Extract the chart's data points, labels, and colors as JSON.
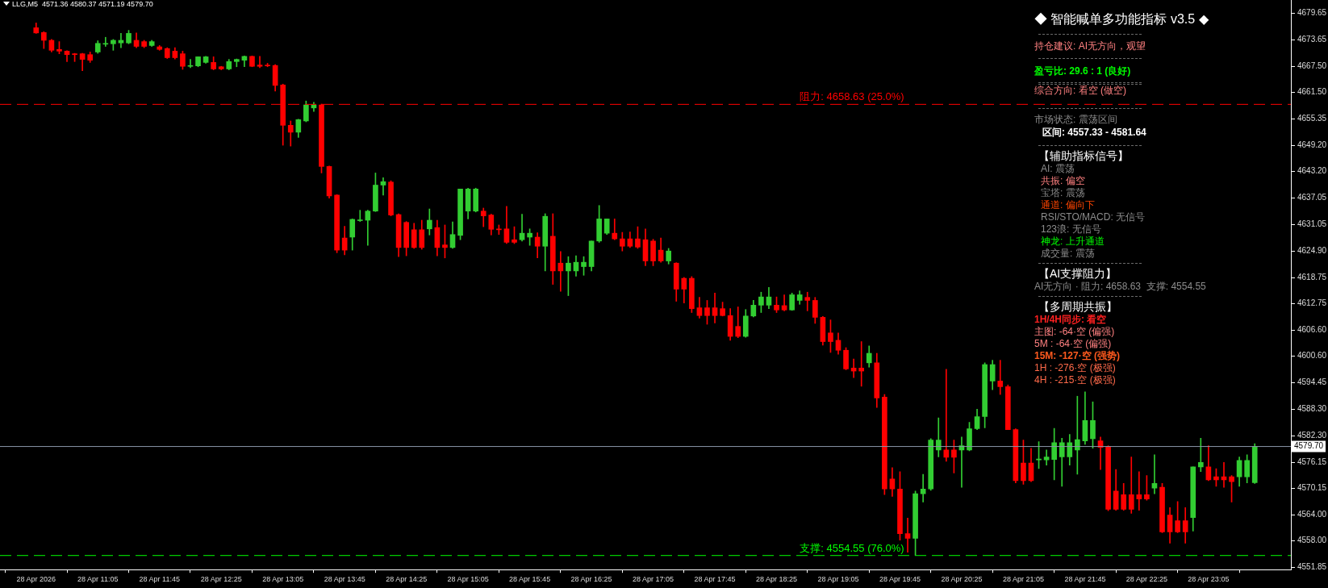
{
  "chart_data": {
    "type": "candlestick",
    "title": "LLG,M5  4571.36 4580.37 4571.19 4579.70",
    "categories": [
      "28 Apr 2026",
      null,
      null,
      null,
      null,
      null,
      null,
      null,
      "28 Apr 11:05",
      null,
      null,
      null,
      null,
      null,
      null,
      null,
      "28 Apr 11:45",
      null,
      null,
      null,
      null,
      null,
      null,
      null,
      "28 Apr 12:25",
      null,
      null,
      null,
      null,
      null,
      null,
      null,
      "28 Apr 13:05",
      null,
      null,
      null,
      null,
      null,
      null,
      null,
      "28 Apr 13:45",
      null,
      null,
      null,
      null,
      null,
      null,
      null,
      "28 Apr 14:25",
      null,
      null,
      null,
      null,
      null,
      null,
      null,
      "28 Apr 15:05",
      null,
      null,
      null,
      null,
      null,
      null,
      null,
      "28 Apr 15:45",
      null,
      null,
      null,
      null,
      null,
      null,
      null,
      "28 Apr 16:25",
      null,
      null,
      null,
      null,
      null,
      null,
      null,
      "28 Apr 17:05",
      null,
      null,
      null,
      null,
      null,
      null,
      null,
      "28 Apr 17:45",
      null,
      null,
      null,
      null,
      null,
      null,
      null,
      "28 Apr 18:25",
      null,
      null,
      null,
      null,
      null,
      null,
      null,
      "28 Apr 19:05",
      null,
      null,
      null,
      null,
      null,
      null,
      null,
      "28 Apr 19:45",
      null,
      null,
      null,
      null,
      null,
      null,
      null,
      "28 Apr 20:25",
      null,
      null,
      null,
      null,
      null,
      null,
      null,
      "28 Apr 21:05",
      null,
      null,
      null,
      null,
      null,
      null,
      null,
      "28 Apr 21:45",
      null,
      null,
      null,
      null,
      null,
      null,
      null,
      "28 Apr 22:25",
      null,
      null,
      null,
      null,
      null,
      null,
      null,
      "28 Apr 23:05",
      null,
      null,
      null,
      null,
      null,
      null
    ],
    "ohlc": [
      [
        4676.3,
        4677.4,
        4675.0,
        4675.1
      ],
      [
        4675.2,
        4675.4,
        4671.5,
        4673.4
      ],
      [
        4673.4,
        4673.6,
        4670.7,
        4671.1
      ],
      [
        4671.3,
        4673.1,
        4670.3,
        4670.9
      ],
      [
        4670.9,
        4671.0,
        4668.5,
        4670.1
      ],
      [
        4670.3,
        4670.4,
        4668.5,
        4670.1
      ],
      [
        4670.3,
        4670.4,
        4666.4,
        4669.0
      ],
      [
        4670.1,
        4670.7,
        4668.3,
        4668.8
      ],
      [
        4670.7,
        4673.3,
        4670.4,
        4672.7
      ],
      [
        4672.5,
        4674.1,
        4672.0,
        4672.6
      ],
      [
        4672.6,
        4673.6,
        4671.1,
        4673.4
      ],
      [
        4672.8,
        4675.0,
        4671.7,
        4673.4
      ],
      [
        4672.8,
        4675.7,
        4672.6,
        4675.0
      ],
      [
        4673.4,
        4675.1,
        4671.7,
        4672.0
      ],
      [
        4673.1,
        4673.4,
        4671.7,
        4672.0
      ],
      [
        4672.2,
        4673.4,
        4672.0,
        4673.1
      ],
      [
        4671.9,
        4672.2,
        4671.1,
        4671.3
      ],
      [
        4671.5,
        4671.7,
        4669.2,
        4669.4
      ],
      [
        4670.9,
        4671.7,
        4669.1,
        4669.4
      ],
      [
        4670.3,
        4670.9,
        4666.7,
        4667.4
      ],
      [
        4667.4,
        4669.0,
        4667.1,
        4667.5
      ],
      [
        4667.5,
        4669.6,
        4667.3,
        4669.6
      ],
      [
        4668.3,
        4669.7,
        4668.1,
        4669.6
      ],
      [
        4668.3,
        4669.6,
        4666.6,
        4666.8
      ],
      [
        4667.3,
        4667.4,
        4666.6,
        4666.8
      ],
      [
        4666.8,
        4669.0,
        4666.6,
        4668.5
      ],
      [
        4668.5,
        4669.1,
        4667.3,
        4669.0
      ],
      [
        4668.8,
        4669.8,
        4667.3,
        4669.7
      ],
      [
        4669.7,
        4669.8,
        4667.3,
        4667.4
      ],
      [
        4667.7,
        4669.7,
        4667.1,
        4667.4
      ],
      [
        4667.6,
        4668.1,
        4667.3,
        4667.5
      ],
      [
        4667.6,
        4667.8,
        4661.7,
        4663.0
      ],
      [
        4663.1,
        4663.3,
        4649.2,
        4653.8
      ],
      [
        4653.8,
        4654.8,
        4649.0,
        4652.2
      ],
      [
        4652.2,
        4655.2,
        4651.0,
        4655.1
      ],
      [
        4654.8,
        4659.4,
        4654.6,
        4658.5
      ],
      [
        4657.8,
        4659.1,
        4657.0,
        4658.5
      ],
      [
        4658.5,
        4658.7,
        4642.8,
        4644.3
      ],
      [
        4644.3,
        4644.4,
        4637.0,
        4637.5
      ],
      [
        4637.7,
        4637.8,
        4624.4,
        4625.0
      ],
      [
        4627.8,
        4630.5,
        4623.9,
        4625.0
      ],
      [
        4628.0,
        4632.2,
        4625.0,
        4632.1
      ],
      [
        4631.8,
        4634.2,
        4631.6,
        4631.9
      ],
      [
        4631.9,
        4634.2,
        4626.1,
        4634.0
      ],
      [
        4634.0,
        4642.8,
        4633.9,
        4640.0
      ],
      [
        4640.0,
        4641.7,
        4637.7,
        4640.8
      ],
      [
        4640.7,
        4641.0,
        4632.9,
        4633.1
      ],
      [
        4633.2,
        4633.4,
        4623.5,
        4625.6
      ],
      [
        4631.4,
        4631.6,
        4623.7,
        4625.6
      ],
      [
        4629.7,
        4631.2,
        4625.4,
        4625.6
      ],
      [
        4629.7,
        4631.9,
        4625.2,
        4625.6
      ],
      [
        4629.9,
        4634.5,
        4628.5,
        4631.9
      ],
      [
        4630.2,
        4631.9,
        4623.7,
        4625.6
      ],
      [
        4626.2,
        4630.8,
        4623.2,
        4625.6
      ],
      [
        4625.6,
        4631.5,
        4625.4,
        4628.6
      ],
      [
        4628.4,
        4639.1,
        4627.4,
        4639.1
      ],
      [
        4634.0,
        4639.3,
        4632.2,
        4639.1
      ],
      [
        4634.0,
        4639.3,
        4633.8,
        4639.1
      ],
      [
        4634.0,
        4634.7,
        4630.4,
        4632.9
      ],
      [
        4633.1,
        4633.3,
        4628.5,
        4629.8
      ],
      [
        4629.8,
        4630.8,
        4628.6,
        4629.7
      ],
      [
        4629.9,
        4635.1,
        4626.5,
        4626.8
      ],
      [
        4627.4,
        4630.4,
        4626.5,
        4626.8
      ],
      [
        4627.4,
        4633.3,
        4627.1,
        4628.9
      ],
      [
        4628.0,
        4629.9,
        4626.1,
        4628.9
      ],
      [
        4628.0,
        4629.0,
        4623.2,
        4625.9
      ],
      [
        4625.9,
        4633.4,
        4620.2,
        4632.8
      ],
      [
        4628.2,
        4633.4,
        4617.1,
        4620.2
      ],
      [
        4622.0,
        4624.7,
        4615.5,
        4620.2
      ],
      [
        4620.2,
        4623.5,
        4614.5,
        4622.0
      ],
      [
        4620.2,
        4623.7,
        4619.0,
        4622.2
      ],
      [
        4621.2,
        4623.5,
        4619.2,
        4622.2
      ],
      [
        4621.2,
        4627.1,
        4620.2,
        4627.1
      ],
      [
        4627.1,
        4635.3,
        4626.8,
        4632.2
      ],
      [
        4628.9,
        4632.2,
        4628.6,
        4632.2
      ],
      [
        4628.9,
        4632.2,
        4627.4,
        4627.6
      ],
      [
        4627.6,
        4629.1,
        4624.8,
        4625.9
      ],
      [
        4627.6,
        4629.2,
        4625.6,
        4625.9
      ],
      [
        4627.6,
        4630.4,
        4625.4,
        4625.7
      ],
      [
        4627.4,
        4629.9,
        4621.4,
        4622.5
      ],
      [
        4627.1,
        4627.5,
        4621.4,
        4622.5
      ],
      [
        4625.0,
        4627.8,
        4622.2,
        4622.5
      ],
      [
        4622.5,
        4625.4,
        4621.8,
        4624.8
      ],
      [
        4622.0,
        4622.1,
        4613.2,
        4616.0
      ],
      [
        4618.5,
        4618.7,
        4612.8,
        4616.0
      ],
      [
        4618.5,
        4618.9,
        4610.6,
        4611.5
      ],
      [
        4611.7,
        4614.1,
        4609.3,
        4609.9
      ],
      [
        4611.7,
        4613.4,
        4607.9,
        4609.9
      ],
      [
        4611.7,
        4615.1,
        4608.2,
        4609.9
      ],
      [
        4611.5,
        4613.0,
        4609.8,
        4609.9
      ],
      [
        4609.9,
        4611.5,
        4604.2,
        4605.1
      ],
      [
        4607.4,
        4611.9,
        4604.8,
        4605.1
      ],
      [
        4605.1,
        4611.3,
        4604.9,
        4609.8
      ],
      [
        4609.8,
        4613.4,
        4609.6,
        4612.3
      ],
      [
        4612.3,
        4615.3,
        4610.6,
        4614.2
      ],
      [
        4612.3,
        4616.4,
        4611.5,
        4614.2
      ],
      [
        4612.3,
        4614.2,
        4610.6,
        4611.2
      ],
      [
        4612.2,
        4614.7,
        4611.0,
        4611.2
      ],
      [
        4611.2,
        4615.1,
        4611.1,
        4614.7
      ],
      [
        4613.4,
        4615.6,
        4612.5,
        4614.7
      ],
      [
        4614.1,
        4615.3,
        4611.0,
        4613.4
      ],
      [
        4613.4,
        4614.1,
        4608.1,
        4609.5
      ],
      [
        4609.5,
        4609.7,
        4603.1,
        4603.9
      ],
      [
        4605.9,
        4608.9,
        4601.4,
        4603.9
      ],
      [
        4604.2,
        4605.9,
        4601.0,
        4601.9
      ],
      [
        4601.9,
        4602.5,
        4597.4,
        4597.6
      ],
      [
        4597.8,
        4599.9,
        4595.6,
        4597.1
      ],
      [
        4597.8,
        4603.9,
        4593.6,
        4597.1
      ],
      [
        4599.0,
        4602.9,
        4598.0,
        4601.2
      ],
      [
        4599.0,
        4601.2,
        4588.7,
        4590.9
      ],
      [
        4591.1,
        4591.7,
        4568.6,
        4569.9
      ],
      [
        4572.2,
        4574.8,
        4568.2,
        4569.9
      ],
      [
        4569.9,
        4573.9,
        4558.1,
        4559.6
      ],
      [
        4559.6,
        4563.2,
        4555.3,
        4558.5
      ],
      [
        4558.5,
        4569.4,
        4554.6,
        4568.8
      ],
      [
        4568.8,
        4573.3,
        4566.9,
        4569.9
      ],
      [
        4569.9,
        4581.5,
        4569.6,
        4581.2
      ],
      [
        4578.9,
        4586.3,
        4577.3,
        4581.2
      ],
      [
        4578.9,
        4597.5,
        4576.3,
        4577.2
      ],
      [
        4578.9,
        4581.2,
        4573.6,
        4577.2
      ],
      [
        4578.9,
        4581.9,
        4570.3,
        4579.9
      ],
      [
        4578.9,
        4585.3,
        4578.7,
        4583.8
      ],
      [
        4583.8,
        4588.3,
        4583.6,
        4586.6
      ],
      [
        4586.6,
        4599.0,
        4584.0,
        4598.6
      ],
      [
        4594.8,
        4599.6,
        4592.8,
        4598.6
      ],
      [
        4594.8,
        4599.6,
        4591.7,
        4593.5
      ],
      [
        4593.5,
        4593.9,
        4583.6,
        4583.6
      ],
      [
        4583.6,
        4583.8,
        4571.3,
        4571.8
      ],
      [
        4575.9,
        4581.2,
        4571.0,
        4571.8
      ],
      [
        4575.9,
        4579.3,
        4571.6,
        4571.8
      ],
      [
        4576.6,
        4580.8,
        4574.6,
        4576.8
      ],
      [
        4576.6,
        4578.9,
        4575.4,
        4577.3
      ],
      [
        4576.7,
        4583.9,
        4572.0,
        4580.6
      ],
      [
        4577.3,
        4581.6,
        4570.5,
        4580.6
      ],
      [
        4577.3,
        4582.5,
        4575.4,
        4580.6
      ],
      [
        4578.9,
        4591.3,
        4573.3,
        4581.3
      ],
      [
        4581.0,
        4592.3,
        4580.2,
        4585.7
      ],
      [
        4581.5,
        4590.0,
        4579.3,
        4585.7
      ],
      [
        4581.0,
        4581.9,
        4574.4,
        4579.5
      ],
      [
        4579.7,
        4579.9,
        4564.9,
        4565.2
      ],
      [
        4569.4,
        4574.4,
        4565.0,
        4565.2
      ],
      [
        4568.6,
        4571.2,
        4565.0,
        4565.2
      ],
      [
        4568.6,
        4577.3,
        4564.3,
        4565.2
      ],
      [
        4568.6,
        4573.9,
        4565.0,
        4567.6
      ],
      [
        4568.6,
        4573.0,
        4567.3,
        4567.6
      ],
      [
        4570.1,
        4577.8,
        4568.8,
        4571.2
      ],
      [
        4570.3,
        4571.2,
        4559.8,
        4560.0
      ],
      [
        4563.9,
        4565.6,
        4557.4,
        4560.0
      ],
      [
        4562.6,
        4567.0,
        4559.8,
        4560.0
      ],
      [
        4562.6,
        4565.6,
        4557.4,
        4560.0
      ],
      [
        4563.3,
        4575.0,
        4560.2,
        4575.0
      ],
      [
        4575.0,
        4581.6,
        4573.9,
        4576.0
      ],
      [
        4575.0,
        4579.9,
        4571.8,
        4572.0
      ],
      [
        4572.7,
        4574.6,
        4570.5,
        4572.0
      ],
      [
        4572.7,
        4576.0,
        4570.3,
        4572.0
      ],
      [
        4572.7,
        4573.0,
        4566.9,
        4571.6
      ],
      [
        4572.7,
        4577.3,
        4570.5,
        4576.5
      ],
      [
        4572.7,
        4577.8,
        4571.3,
        4576.5
      ],
      [
        4571.36,
        4580.37,
        4571.19,
        4579.7
      ]
    ],
    "colors": [
      "#ff0000",
      "#ff0000",
      "#ff0000",
      "#ff0000",
      "#ff0000",
      "#ff0000",
      "#ff0000",
      "#ff0000",
      "#32cd32",
      "#32cd32",
      "#32cd32",
      "#32cd32",
      "#32cd32",
      "#ff0000",
      "#ff0000",
      "#32cd32",
      "#ff0000",
      "#ff0000",
      "#ff0000",
      "#ff0000",
      "#32cd32",
      "#32cd32",
      "#32cd32",
      "#ff0000",
      "#ff0000",
      "#32cd32",
      "#32cd32",
      "#32cd32",
      "#ff0000",
      "#ff0000",
      "#ff0000",
      "#ff0000",
      "#ff0000",
      "#ff0000",
      "#32cd32",
      "#32cd32",
      "#32cd32",
      "#ff0000",
      "#ff0000",
      "#ff0000",
      "#ff0000",
      "#32cd32",
      "#32cd32",
      "#32cd32",
      "#32cd32",
      "#32cd32",
      "#ff0000",
      "#ff0000",
      "#ff0000",
      "#ff0000",
      "#ff0000",
      "#32cd32",
      "#ff0000",
      "#ff0000",
      "#32cd32",
      "#32cd32",
      "#32cd32",
      "#32cd32",
      "#ff0000",
      "#ff0000",
      "#ff0000",
      "#ff0000",
      "#ff0000",
      "#32cd32",
      "#32cd32",
      "#ff0000",
      "#32cd32",
      "#ff0000",
      "#ff0000",
      "#32cd32",
      "#32cd32",
      "#32cd32",
      "#32cd32",
      "#32cd32",
      "#32cd32",
      "#ff0000",
      "#ff0000",
      "#ff0000",
      "#ff0000",
      "#ff0000",
      "#ff0000",
      "#ff0000",
      "#32cd32",
      "#ff0000",
      "#ff0000",
      "#ff0000",
      "#ff0000",
      "#ff0000",
      "#ff0000",
      "#ff0000",
      "#ff0000",
      "#ff0000",
      "#32cd32",
      "#32cd32",
      "#32cd32",
      "#32cd32",
      "#ff0000",
      "#ff0000",
      "#32cd32",
      "#32cd32",
      "#ff0000",
      "#ff0000",
      "#ff0000",
      "#ff0000",
      "#ff0000",
      "#ff0000",
      "#ff0000",
      "#ff0000",
      "#32cd32",
      "#ff0000",
      "#ff0000",
      "#ff0000",
      "#ff0000",
      "#ff0000",
      "#32cd32",
      "#32cd32",
      "#32cd32",
      "#32cd32",
      "#ff0000",
      "#ff0000",
      "#32cd32",
      "#32cd32",
      "#32cd32",
      "#32cd32",
      "#32cd32",
      "#ff0000",
      "#ff0000",
      "#ff0000",
      "#ff0000",
      "#ff0000",
      "#32cd32",
      "#32cd32",
      "#32cd32",
      "#32cd32",
      "#32cd32",
      "#32cd32",
      "#32cd32",
      "#32cd32",
      "#ff0000",
      "#ff0000",
      "#ff0000",
      "#ff0000",
      "#ff0000",
      "#ff0000",
      "#ff0000",
      "#32cd32",
      "#ff0000",
      "#ff0000",
      "#ff0000",
      "#ff0000",
      "#32cd32",
      "#32cd32",
      "#ff0000",
      "#ff0000",
      "#ff0000",
      "#ff0000",
      "#32cd32",
      "#32cd32",
      "#32cd32"
    ],
    "ylim": [
      4551.3,
      4682.7
    ],
    "yticks": [
      {
        "value": 4679.65,
        "label": "4679.65"
      },
      {
        "value": 4673.65,
        "label": "4673.65"
      },
      {
        "value": 4667.5,
        "label": "4667.50"
      },
      {
        "value": 4661.5,
        "label": "4661.50"
      },
      {
        "value": 4655.35,
        "label": "4655.35"
      },
      {
        "value": 4649.2,
        "label": "4649.20"
      },
      {
        "value": 4643.2,
        "label": "4643.20"
      },
      {
        "value": 4637.05,
        "label": "4637.05"
      },
      {
        "value": 4631.05,
        "label": "4631.05"
      },
      {
        "value": 4624.9,
        "label": "4624.90"
      },
      {
        "value": 4618.75,
        "label": "4618.75"
      },
      {
        "value": 4612.75,
        "label": "4612.75"
      },
      {
        "value": 4606.6,
        "label": "4606.60"
      },
      {
        "value": 4600.6,
        "label": "4600.60"
      },
      {
        "value": 4594.45,
        "label": "4594.45"
      },
      {
        "value": 4588.3,
        "label": "4588.30"
      },
      {
        "value": 4582.3,
        "label": "4582.30"
      },
      {
        "value": 4576.15,
        "label": "4576.15"
      },
      {
        "value": 4570.15,
        "label": "4570.15"
      },
      {
        "value": 4564,
        "label": "4564.00"
      },
      {
        "value": 4558,
        "label": "4558.00"
      },
      {
        "value": 4551.85,
        "label": "4551.85"
      }
    ],
    "ref_lines": [
      {
        "axis": "y",
        "value": 4658.63,
        "label": "阻力: 4658.63 (25.0%)",
        "color": "#ff0000",
        "line_style": "dashed"
      },
      {
        "axis": "y",
        "value": 4554.55,
        "label": "支撑: 4554.55 (76.0%)",
        "color": "#00ff00",
        "line_style": "dashed"
      },
      {
        "axis": "y",
        "value": 4579.7,
        "label": "4579.70",
        "color": "#8a96a8",
        "line_style": "solid"
      }
    ],
    "annotations": [
      "◆ 智能喊单多功能指标 v3.5 ◆",
      "持仓建议: AI无方向，观望",
      "盈亏比: 29.6 : 1 (良好)",
      "综合方向: 看空 (做空)",
      "市场状态: 震荡区间",
      "区间: 4557.33 - 4581.64",
      "【辅助指标信号】",
      "AI: 震荡",
      "共振: 偏空",
      "宝塔: 震荡",
      "通道: 偏向下",
      "RSI/STO/MACD: 无信号",
      "123浪: 无信号",
      "神龙: 上升通道",
      "成交量: 震荡",
      "【AI支撑阻力】",
      "AI无方向 · 阻力: 4658.63  支撑: 4554.55",
      "【多周期共振】",
      "1H/4H同步: 看空",
      "主图: -64·空 (偏强)",
      "5M : -64·空 (偏强)",
      "15M: -127·空 (强势)",
      "1H : -276·空 (极强)",
      "4H : -215·空 (极强)"
    ]
  }
}
